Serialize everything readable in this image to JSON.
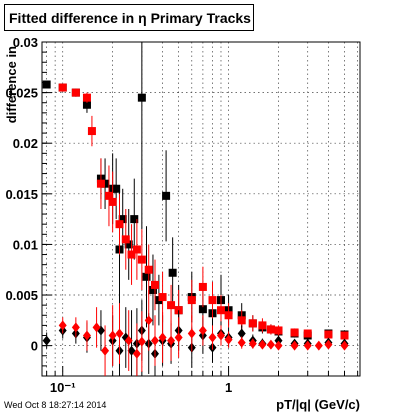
{
  "chart_data": {
    "type": "scatter",
    "title": "Fitted difference in η  Primary Tracks",
    "xlabel": "pT/|q| (GeV/c)",
    "ylabel": "difference in",
    "x_scale": "log",
    "xlim": [
      0.075,
      6.2
    ],
    "ylim": [
      -0.003,
      0.03
    ],
    "x_tick_labels": [
      "10⁻¹",
      "1"
    ],
    "y_tick_labels": [
      "0",
      "0.005",
      "0.01",
      "0.015",
      "0.02",
      "0.025",
      "0.03"
    ],
    "grid": true,
    "series": [
      {
        "marker": "square",
        "color": "#000000",
        "x": [
          0.08,
          0.1,
          0.12,
          0.14,
          0.17,
          0.18,
          0.2,
          0.21,
          0.22,
          0.23,
          0.25,
          0.27,
          0.3,
          0.32,
          0.35,
          0.38,
          0.42,
          0.46,
          0.5,
          0.6,
          0.7,
          0.8,
          0.9,
          1.0,
          1.2,
          1.4,
          1.6,
          1.8,
          2.0,
          2.5,
          3.0,
          4.0,
          5.0
        ],
        "y": [
          0.0258,
          0.0255,
          0.025,
          0.0238,
          0.0165,
          0.016,
          0.0155,
          0.0155,
          0.0095,
          0.0125,
          0.01,
          0.0125,
          0.0245,
          0.0068,
          0.0055,
          0.0045,
          0.0148,
          0.0072,
          0.0035,
          0.0048,
          0.0036,
          0.0032,
          0.0045,
          0.0035,
          0.003,
          0.0022,
          0.0018,
          0.0016,
          0.0014,
          0.0012,
          0.001,
          0.0012,
          0.0011
        ],
        "err": [
          0.0002,
          0.0003,
          0.0004,
          0.0008,
          0.002,
          0.0025,
          0.0035,
          0.003,
          0.006,
          0.003,
          0.0035,
          0.004,
          0.013,
          0.005,
          0.0035,
          0.0025,
          0.0045,
          0.0035,
          0.0025,
          0.0025,
          0.0025,
          0.0022,
          0.0025,
          0.0015,
          0.0012,
          0.0008,
          0.0006,
          0.0005,
          0.0005,
          0.0004,
          0.0004,
          0.0003,
          0.0003
        ]
      },
      {
        "marker": "square",
        "color": "#ff0000",
        "x": [
          0.1,
          0.12,
          0.14,
          0.15,
          0.17,
          0.19,
          0.2,
          0.22,
          0.24,
          0.26,
          0.28,
          0.3,
          0.33,
          0.36,
          0.4,
          0.45,
          0.5,
          0.6,
          0.7,
          0.8,
          0.9,
          1.0,
          1.2,
          1.4,
          1.6,
          1.8,
          2.0,
          2.5,
          3.0,
          4.0,
          5.0
        ],
        "y": [
          0.0255,
          0.025,
          0.0245,
          0.0212,
          0.016,
          0.0148,
          0.0142,
          0.012,
          0.0105,
          0.009,
          0.0095,
          0.0085,
          0.0075,
          0.006,
          0.0048,
          0.004,
          0.0035,
          0.0045,
          0.0058,
          0.0045,
          0.0035,
          0.003,
          0.0025,
          0.0022,
          0.002,
          0.0016,
          0.0015,
          0.0013,
          0.0012,
          0.0011,
          0.001
        ],
        "err": [
          0.0002,
          0.0003,
          0.0005,
          0.0015,
          0.0025,
          0.003,
          0.003,
          0.003,
          0.003,
          0.003,
          0.003,
          0.003,
          0.0025,
          0.0025,
          0.0025,
          0.002,
          0.002,
          0.002,
          0.002,
          0.0018,
          0.0015,
          0.0012,
          0.001,
          0.0008,
          0.0007,
          0.0005,
          0.0005,
          0.0004,
          0.0003,
          0.0003,
          0.0003
        ]
      },
      {
        "marker": "diamond",
        "color": "#000000",
        "x": [
          0.08,
          0.1,
          0.12,
          0.14,
          0.17,
          0.2,
          0.22,
          0.24,
          0.26,
          0.28,
          0.3,
          0.33,
          0.36,
          0.4,
          0.45,
          0.5,
          0.6,
          0.7,
          0.8,
          0.9,
          1.0,
          1.2,
          1.4,
          1.6,
          2.0,
          2.5,
          3.0,
          4.0,
          5.0
        ],
        "y": [
          0.0005,
          0.0015,
          0.0012,
          0.0008,
          0.0015,
          0.0005,
          -0.0005,
          0.0008,
          -0.0005,
          0.0002,
          0.0015,
          0.0002,
          -0.0008,
          0.0005,
          0.0002,
          0.0015,
          -0.0002,
          0.001,
          -0.0002,
          0.0012,
          0.0008,
          0.0012,
          0.0005,
          0.0002,
          0.0005,
          0.0002,
          0.0002,
          0.0003,
          0.0002
        ],
        "err": [
          0.0008,
          0.0008,
          0.001,
          0.0015,
          0.002,
          0.0025,
          0.003,
          0.003,
          0.004,
          0.0035,
          0.003,
          0.003,
          0.0025,
          0.0025,
          0.002,
          0.002,
          0.002,
          0.0018,
          0.0015,
          0.0012,
          0.001,
          0.0008,
          0.0006,
          0.0005,
          0.0004,
          0.0004,
          0.0003,
          0.0003,
          0.0003
        ]
      },
      {
        "marker": "diamond",
        "color": "#ff0000",
        "x": [
          0.1,
          0.12,
          0.14,
          0.16,
          0.18,
          0.2,
          0.22,
          0.25,
          0.28,
          0.3,
          0.33,
          0.36,
          0.4,
          0.45,
          0.5,
          0.6,
          0.7,
          0.8,
          0.9,
          1.0,
          1.2,
          1.4,
          1.6,
          1.8,
          2.0,
          2.5,
          3.0,
          3.5,
          4.0,
          5.0
        ],
        "y": [
          0.002,
          0.0018,
          0.001,
          0.0018,
          -0.0005,
          0.001,
          0.0012,
          0.0005,
          -0.0008,
          0.0004,
          0.0025,
          0.0005,
          0.0008,
          0.0005,
          0.0008,
          0.0012,
          0.0015,
          0.0008,
          0.001,
          0.0006,
          0.0003,
          0.0002,
          0.0001,
          0.0001,
          0.0,
          0.0,
          0.0,
          0.0,
          0.0001,
          0.0
        ],
        "err": [
          0.0008,
          0.001,
          0.0015,
          0.002,
          0.0025,
          0.003,
          0.003,
          0.003,
          0.003,
          0.003,
          0.003,
          0.0025,
          0.0025,
          0.002,
          0.002,
          0.0018,
          0.0015,
          0.0012,
          0.001,
          0.0008,
          0.0006,
          0.0005,
          0.0004,
          0.0004,
          0.0003,
          0.0003,
          0.0003,
          0.0002,
          0.0002,
          0.0002
        ]
      }
    ]
  },
  "timestamp": "Wed Oct  8 18:27:14 2014"
}
